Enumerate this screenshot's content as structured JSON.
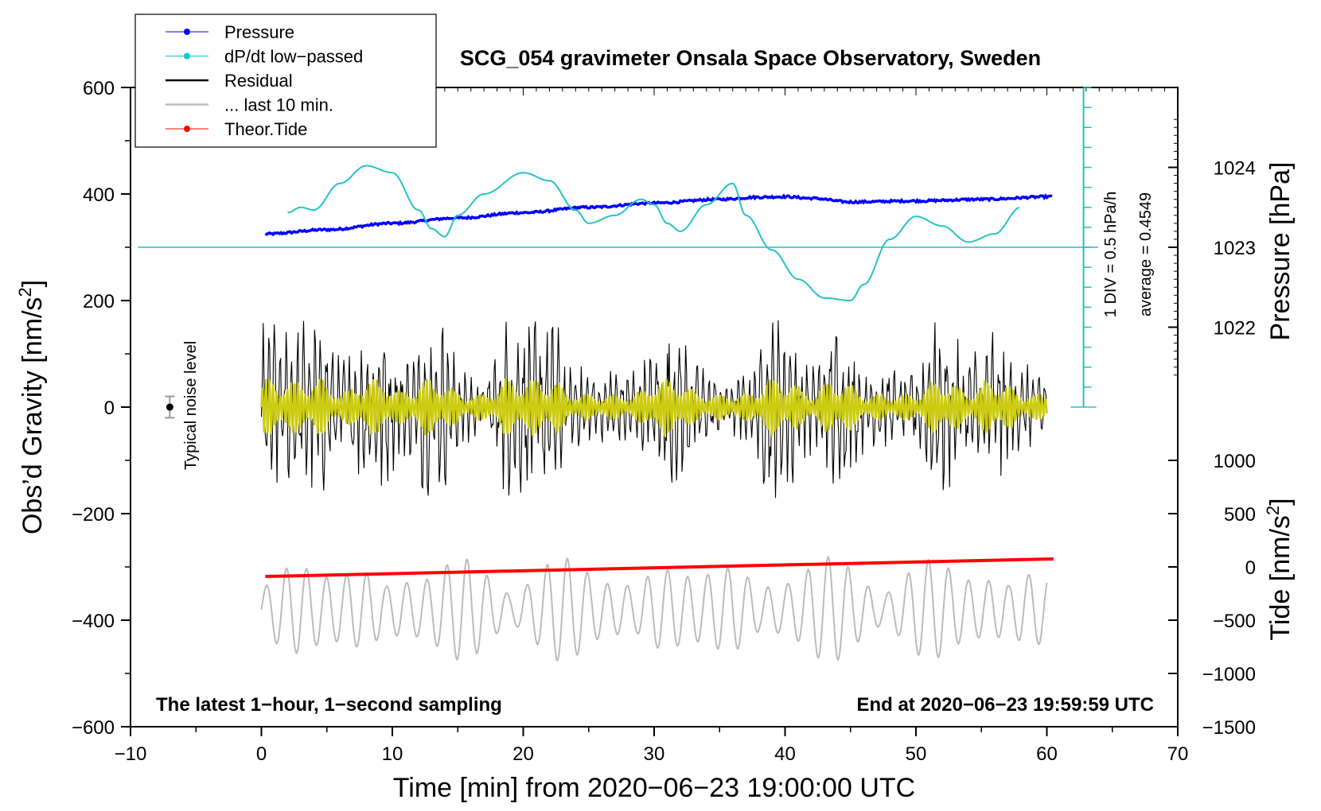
{
  "chart_data": {
    "type": "line",
    "title": "SCG_054 gravimeter Onsala Space Observatory, Sweden",
    "xlabel": "Time [min] from 2020−06−23 19:00:00 UTC",
    "ylabel": "Obs’d Gravity [nm/s",
    "ylabel_sup": "2",
    "ylabel_close": "]",
    "xlim": [
      -10,
      70
    ],
    "ylim": [
      -600,
      600
    ],
    "xticks": [
      -10,
      0,
      10,
      20,
      30,
      40,
      50,
      60,
      70
    ],
    "xtick_labels": [
      "−10",
      "0",
      "10",
      "20",
      "30",
      "40",
      "50",
      "60",
      "70"
    ],
    "yticks": [
      -600,
      -400,
      -200,
      0,
      200,
      400,
      600
    ],
    "ytick_labels": [
      "−600",
      "−400",
      "−200",
      "0",
      "200",
      "400",
      "600"
    ],
    "pressure_axis": {
      "label": "Pressure [hPa]",
      "ticks": [
        1022,
        1023,
        1024
      ],
      "tick_labels": [
        "1022",
        "1023",
        "1024"
      ],
      "scale_nms2_per_hPa": 150,
      "offset_gravity_at_1023": 300
    },
    "tide_axis": {
      "label": "Tide [nm/s",
      "label_sup": "2",
      "label_close": "]",
      "ticks": [
        -1500,
        -1000,
        -500,
        0,
        500,
        1000
      ],
      "tick_labels": [
        "−1500",
        "−1000",
        "−500",
        "0",
        "500",
        "1000"
      ],
      "scale_nms2_per_unit": 0.2,
      "offset_gravity_at_zero": -300
    },
    "dpdt_reference": {
      "label_div": "1 DIV = 0.5 hPa/h",
      "label_avg": "average = 0.4549",
      "baseline_gravity": 300,
      "bar_top_gravity": 600,
      "bar_bottom_gravity": 0,
      "x": 62.8
    },
    "noise_level": {
      "label": "Typical noise level",
      "x": -7,
      "y": 0,
      "error": 20
    },
    "annotations": {
      "bottom_left": "The latest 1−hour, 1−second sampling",
      "bottom_right": "End at 2020−06−23 19:59:59 UTC"
    },
    "legend": [
      {
        "name": "Pressure",
        "color": "#0000ff",
        "style": "line-dot"
      },
      {
        "name": "dP/dt low−passed",
        "color": "#00cccc",
        "style": "line-dot"
      },
      {
        "name": "Residual",
        "color": "#000000",
        "style": "line"
      },
      {
        "name": "... last 10 min.",
        "color": "#bbbbbb",
        "style": "line"
      },
      {
        "name": "Theor.Tide",
        "color": "#ff0000",
        "style": "line-dot"
      }
    ],
    "series": [
      {
        "name": "Pressure",
        "color": "#0000ff",
        "x": [
          0.3,
          5,
          10,
          15,
          20,
          25,
          30,
          35,
          38,
          40,
          42,
          45,
          50,
          55,
          60.5
        ],
        "y": [
          325,
          333,
          345,
          355,
          365,
          375,
          383,
          390,
          394,
          395,
          392,
          385,
          387,
          390,
          395
        ]
      },
      {
        "name": "dP/dt low−passed",
        "color": "#00cccc",
        "x": [
          2,
          3,
          4,
          6,
          8,
          10,
          12,
          13,
          14,
          15,
          17,
          20,
          22,
          24,
          25,
          27,
          29,
          30,
          31,
          32,
          34,
          36,
          37,
          39,
          41,
          43,
          45,
          46,
          48,
          50,
          52,
          54,
          56,
          58
        ],
        "y": [
          365,
          375,
          370,
          420,
          453,
          440,
          370,
          335,
          320,
          360,
          400,
          440,
          425,
          370,
          345,
          360,
          390,
          380,
          345,
          330,
          380,
          420,
          360,
          295,
          240,
          205,
          200,
          230,
          315,
          358,
          340,
          310,
          325,
          375
        ]
      },
      {
        "name": "Residual",
        "color": "#000000",
        "x": [
          0,
          60
        ],
        "y_center": 0,
        "peak_amplitude": 220,
        "sampling": "1-second"
      },
      {
        "name": "... last 10 min.",
        "color": "#bbbbbb",
        "x": [
          0,
          60
        ],
        "y_center": -380,
        "peak_amplitude": 100
      },
      {
        "name": "Theor.Tide",
        "color": "#ff0000",
        "x": [
          0.3,
          60.5
        ],
        "y": [
          -318,
          -285
        ]
      }
    ]
  }
}
